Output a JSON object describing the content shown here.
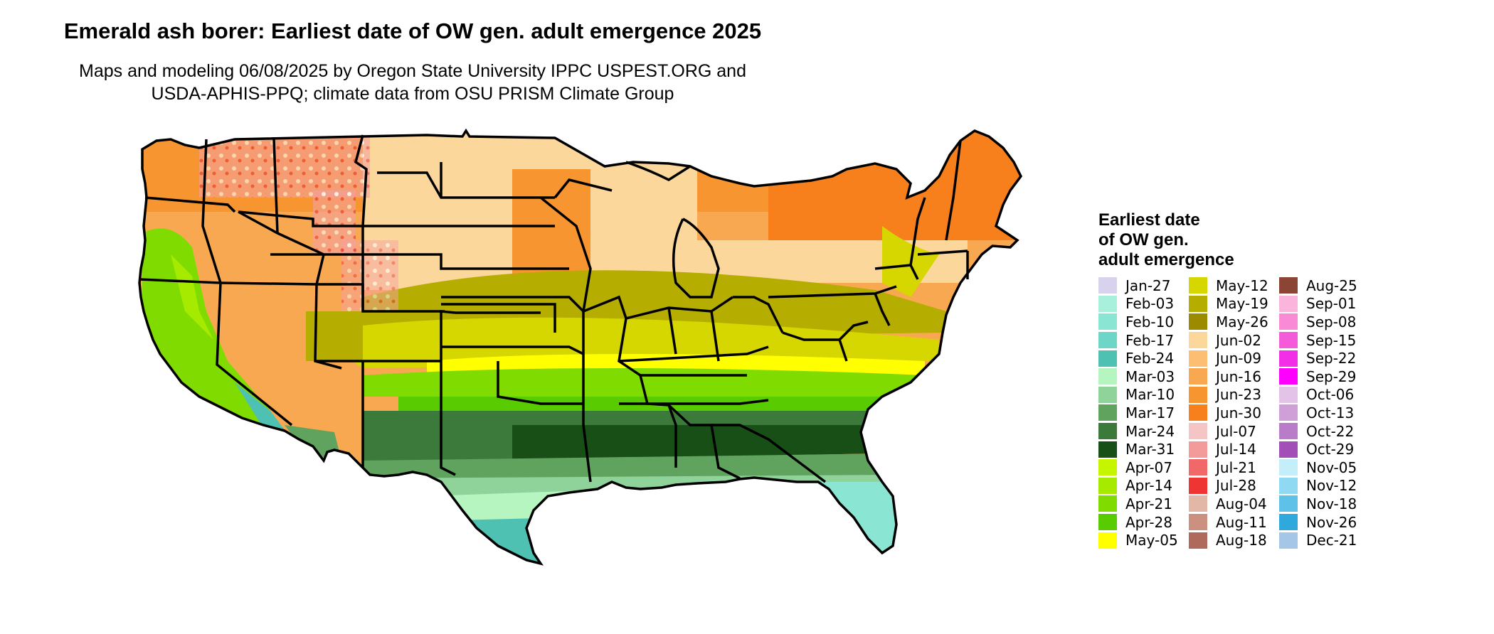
{
  "title": "Emerald ash borer: Earliest date of OW gen. adult emergence 2025",
  "subtitle_line1": "Maps and modeling 06/08/2025 by Oregon State University IPPC USPEST.ORG and",
  "subtitle_line2": "USDA-APHIS-PPQ; climate data from OSU PRISM Climate Group",
  "legend": {
    "title_lines": [
      "Earliest date",
      "of OW gen.",
      "adult emergence"
    ],
    "items": [
      {
        "label": "Jan-27",
        "color": "#d9d2ec"
      },
      {
        "label": "Feb-03",
        "color": "#a8f0dc"
      },
      {
        "label": "Feb-10",
        "color": "#8ae6d2"
      },
      {
        "label": "Feb-17",
        "color": "#6ed6c6"
      },
      {
        "label": "Feb-24",
        "color": "#4fc1b3"
      },
      {
        "label": "Mar-03",
        "color": "#b7f5c0"
      },
      {
        "label": "Mar-10",
        "color": "#8fd29a"
      },
      {
        "label": "Mar-17",
        "color": "#5fa35f"
      },
      {
        "label": "Mar-24",
        "color": "#3b7a3b"
      },
      {
        "label": "Mar-31",
        "color": "#174f17"
      },
      {
        "label": "Apr-07",
        "color": "#c6f500"
      },
      {
        "label": "Apr-14",
        "color": "#a6ea00"
      },
      {
        "label": "Apr-21",
        "color": "#80dc00"
      },
      {
        "label": "Apr-28",
        "color": "#58cc00"
      },
      {
        "label": "May-05",
        "color": "#ffff00"
      },
      {
        "label": "May-12",
        "color": "#d6d600"
      },
      {
        "label": "May-19",
        "color": "#b5ad00"
      },
      {
        "label": "May-26",
        "color": "#9c8a00"
      },
      {
        "label": "Jun-02",
        "color": "#fcd79c"
      },
      {
        "label": "Jun-09",
        "color": "#fbbe72"
      },
      {
        "label": "Jun-16",
        "color": "#f9a852"
      },
      {
        "label": "Jun-23",
        "color": "#f79530"
      },
      {
        "label": "Jun-30",
        "color": "#f7801c"
      },
      {
        "label": "Jul-07",
        "color": "#f5c5c5"
      },
      {
        "label": "Jul-14",
        "color": "#f39a9a"
      },
      {
        "label": "Jul-21",
        "color": "#f06868"
      },
      {
        "label": "Jul-28",
        "color": "#ef3434"
      },
      {
        "label": "Aug-04",
        "color": "#e3b7a8"
      },
      {
        "label": "Aug-11",
        "color": "#cc9080"
      },
      {
        "label": "Aug-18",
        "color": "#b06a5c"
      },
      {
        "label": "Aug-25",
        "color": "#8c4534"
      },
      {
        "label": "Sep-01",
        "color": "#fbb4dc"
      },
      {
        "label": "Sep-08",
        "color": "#f88ad6"
      },
      {
        "label": "Sep-15",
        "color": "#f55ad8"
      },
      {
        "label": "Sep-22",
        "color": "#f22ee6"
      },
      {
        "label": "Sep-29",
        "color": "#ff00ff"
      },
      {
        "label": "Oct-06",
        "color": "#e3c3e8"
      },
      {
        "label": "Oct-13",
        "color": "#cfa0d8"
      },
      {
        "label": "Oct-22",
        "color": "#b97cc9"
      },
      {
        "label": "Oct-29",
        "color": "#a250b8"
      },
      {
        "label": "Nov-05",
        "color": "#c4effa"
      },
      {
        "label": "Nov-12",
        "color": "#8fdaf2"
      },
      {
        "label": "Nov-18",
        "color": "#5ec2e8"
      },
      {
        "label": "Nov-26",
        "color": "#2fa8dc"
      },
      {
        "label": "Dec-21",
        "color": "#a6c6e8"
      }
    ]
  },
  "map": {
    "region": "Contiguous United States",
    "outline_color": "#000000"
  }
}
